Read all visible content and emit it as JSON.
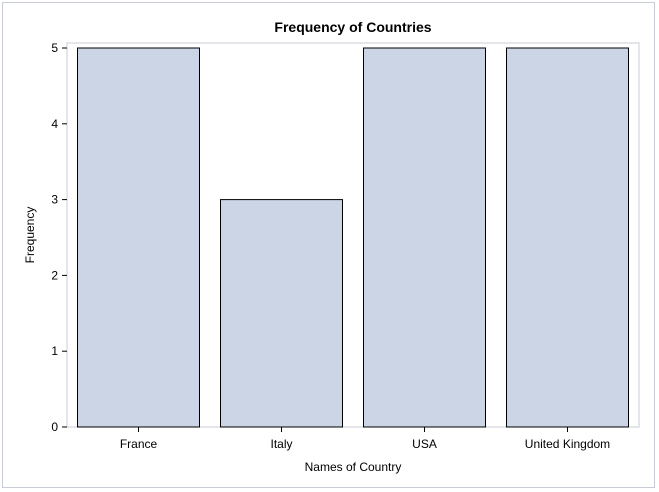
{
  "chart_data": {
    "type": "bar",
    "title": "Frequency of Countries",
    "xlabel": "Names of Country",
    "ylabel": "Frequency",
    "categories": [
      "France",
      "Italy",
      "USA",
      "United Kingdom"
    ],
    "values": [
      5,
      3,
      5,
      5
    ],
    "ylim": [
      0,
      5
    ],
    "yticks": [
      0,
      1,
      2,
      3,
      4,
      5
    ],
    "grid": false,
    "bar_color": "#cbd5e5",
    "bar_outline": "#000000",
    "frame_color": "#c8ccd6"
  }
}
